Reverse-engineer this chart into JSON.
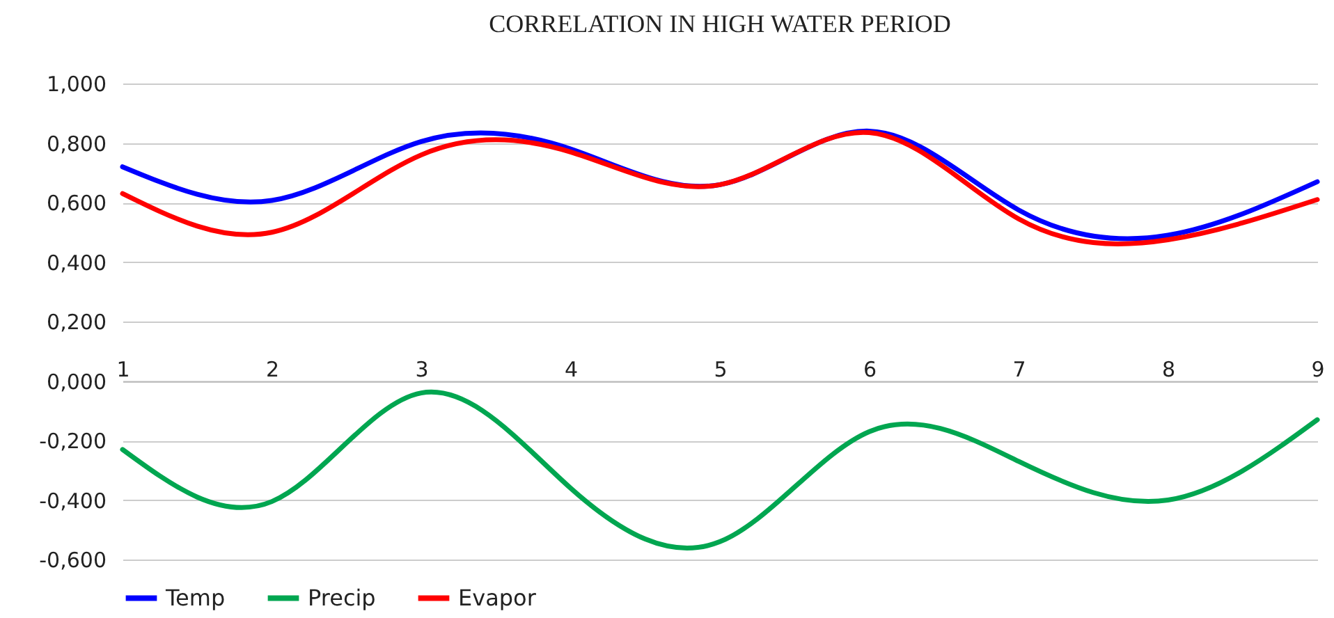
{
  "chart_data": {
    "type": "line",
    "title": "CORRELATION IN HIGH WATER PERIOD",
    "x": [
      1,
      2,
      3,
      4,
      5,
      6,
      7,
      8,
      9
    ],
    "series": [
      {
        "name": "Temp",
        "color": "#0000ff",
        "values": [
          0.72,
          0.607,
          0.805,
          0.78,
          0.66,
          0.84,
          0.575,
          0.49,
          0.67
        ]
      },
      {
        "name": "Precip",
        "color": "#00a650",
        "values": [
          -0.23,
          -0.405,
          -0.04,
          -0.36,
          -0.54,
          -0.17,
          -0.27,
          -0.4,
          -0.13
        ]
      },
      {
        "name": "Evapor",
        "color": "#ff0000",
        "values": [
          0.63,
          0.5,
          0.76,
          0.77,
          0.66,
          0.835,
          0.545,
          0.475,
          0.61
        ]
      }
    ],
    "xlim": [
      1,
      9
    ],
    "xticks": [
      1,
      2,
      3,
      4,
      5,
      6,
      7,
      8,
      9
    ],
    "ylim": [
      -0.6,
      1
    ],
    "yticks": [
      {
        "value": -0.6,
        "label": "-0,600"
      },
      {
        "value": -0.4,
        "label": "-0,400"
      },
      {
        "value": -0.2,
        "label": "-0,200"
      },
      {
        "value": 0,
        "label": "0,000"
      },
      {
        "value": 0.2,
        "label": "0,200"
      },
      {
        "value": 0.4,
        "label": "0,400"
      },
      {
        "value": 0.6,
        "label": "0,600"
      },
      {
        "value": 0.8,
        "label": "0,800"
      },
      {
        "value": 1,
        "label": "1,000"
      }
    ],
    "grid": "y",
    "legend": "bottom",
    "marker": "none",
    "line_style": "solid"
  }
}
